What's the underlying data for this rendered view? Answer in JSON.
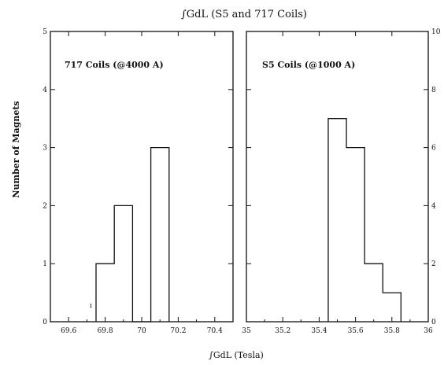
{
  "title": "∫GdL (S5 and 717 Coils)",
  "xlabel": "∫GdL (Tesla)",
  "ylabel": "Number of Magnets",
  "chart_data": [
    {
      "type": "bar",
      "label": "717 Coils (@4000 A)",
      "xlabel": "∫GdL (Tesla)",
      "ylabel": "Number of Magnets",
      "xlim": [
        69.5,
        70.5
      ],
      "ylim": [
        0,
        5
      ],
      "x_ticks": [
        69.6,
        69.8,
        70,
        70.2,
        70.4
      ],
      "x_tick_labels": [
        "69.6",
        "69.8",
        "70",
        "70.2",
        "70.4"
      ],
      "y_ticks": [
        0,
        1,
        2,
        3,
        4,
        5
      ],
      "y_tick_labels": [
        "0",
        "1",
        "2",
        "3",
        "4",
        "5"
      ],
      "y_side": "left",
      "bins": [
        {
          "x0": 69.75,
          "x1": 69.85,
          "value": 1
        },
        {
          "x0": 69.85,
          "x1": 69.95,
          "value": 2
        },
        {
          "x0": 69.95,
          "x1": 70.05,
          "value": 0
        },
        {
          "x0": 70.05,
          "x1": 70.15,
          "value": 3
        }
      ],
      "annotation": "ı"
    },
    {
      "type": "bar",
      "label": "S5 Coils (@1000 A)",
      "xlabel": "∫GdL (Tesla)",
      "ylabel": "Number of Magnets",
      "xlim": [
        35.0,
        36.0
      ],
      "ylim": [
        0,
        10
      ],
      "x_ticks": [
        35,
        35.2,
        35.4,
        35.6,
        35.8,
        36
      ],
      "x_tick_labels": [
        "35",
        "35.2",
        "35.4",
        "35.6",
        "35.8",
        "36"
      ],
      "y_ticks": [
        0,
        2,
        4,
        6,
        8,
        10
      ],
      "y_tick_labels": [
        "0",
        "2",
        "4",
        "6",
        "8",
        "10"
      ],
      "y_side": "right",
      "bins": [
        {
          "x0": 35.45,
          "x1": 35.55,
          "value": 7
        },
        {
          "x0": 35.55,
          "x1": 35.65,
          "value": 6
        },
        {
          "x0": 35.65,
          "x1": 35.75,
          "value": 2
        },
        {
          "x0": 35.75,
          "x1": 35.85,
          "value": 1
        }
      ]
    }
  ]
}
